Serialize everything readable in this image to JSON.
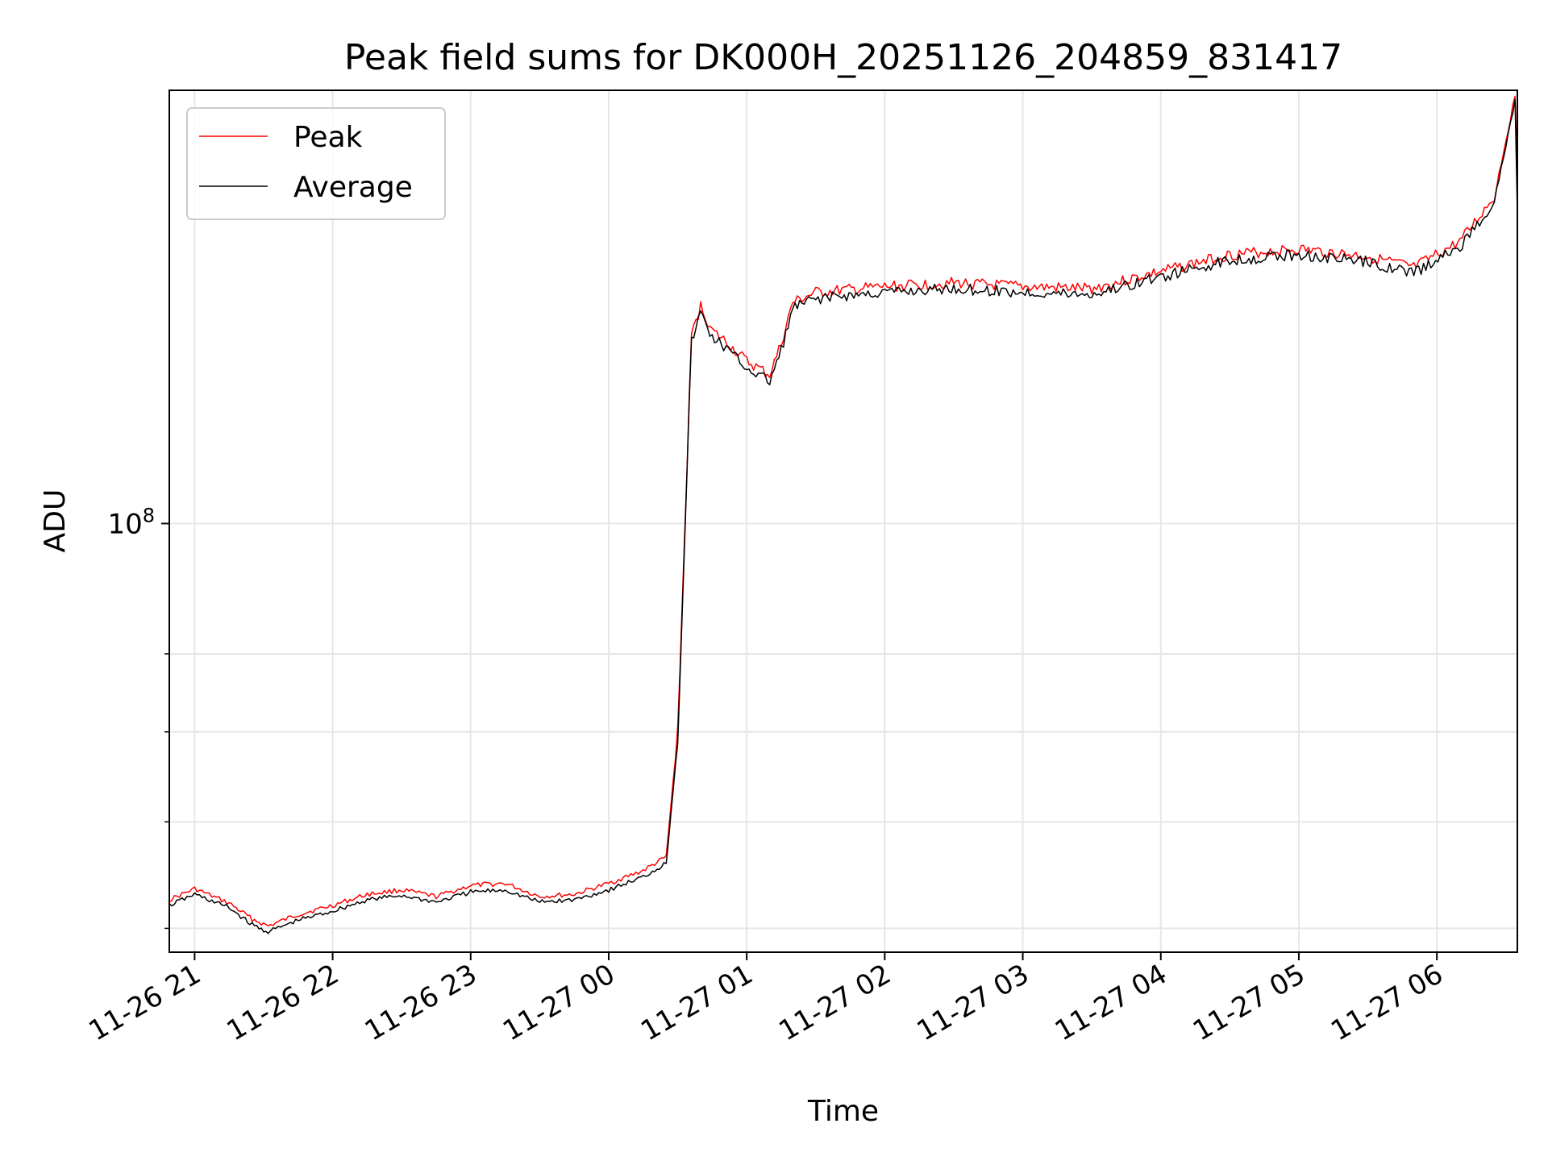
{
  "chart_data": {
    "type": "line",
    "title": "Peak field sums for DK000H_20251126_204859_831417",
    "xlabel": "Time",
    "ylabel": "ADU",
    "yscale": "log",
    "xlim": [
      "2025-11-26 20:49",
      "2025-11-27 06:35"
    ],
    "ylim": [
      48000000,
      210000000
    ],
    "x_ticks": [
      {
        "label": "11-26 21",
        "time": "2025-11-26 21:00"
      },
      {
        "label": "11-26 22",
        "time": "2025-11-26 22:00"
      },
      {
        "label": "11-26 23",
        "time": "2025-11-26 23:00"
      },
      {
        "label": "11-27 00",
        "time": "2025-11-27 00:00"
      },
      {
        "label": "11-27 01",
        "time": "2025-11-27 01:00"
      },
      {
        "label": "11-27 02",
        "time": "2025-11-27 02:00"
      },
      {
        "label": "11-27 03",
        "time": "2025-11-27 03:00"
      },
      {
        "label": "11-27 04",
        "time": "2025-11-27 04:00"
      },
      {
        "label": "11-27 05",
        "time": "2025-11-27 05:00"
      },
      {
        "label": "11-27 06",
        "time": "2025-11-27 06:00"
      }
    ],
    "y_major_ticks": [
      {
        "value": 100000000,
        "base": "10",
        "exp": "8"
      }
    ],
    "y_minor_ticks": [
      50000000,
      60000000,
      70000000,
      80000000
    ],
    "grid": true,
    "legend_position": "upper-left",
    "series": [
      {
        "name": "Peak",
        "color": "#ff0000",
        "x": [
          "2025-11-26 20:49",
          "2025-11-26 21:00",
          "2025-11-26 21:15",
          "2025-11-26 21:25",
          "2025-11-26 21:32",
          "2025-11-26 21:45",
          "2025-11-26 22:00",
          "2025-11-26 22:15",
          "2025-11-26 22:30",
          "2025-11-26 22:45",
          "2025-11-26 23:00",
          "2025-11-26 23:15",
          "2025-11-26 23:30",
          "2025-11-26 23:45",
          "2025-11-27 00:00",
          "2025-11-27 00:15",
          "2025-11-27 00:25",
          "2025-11-27 00:30",
          "2025-11-27 00:33",
          "2025-11-27 00:36",
          "2025-11-27 00:40",
          "2025-11-27 00:45",
          "2025-11-27 00:50",
          "2025-11-27 01:00",
          "2025-11-27 01:10",
          "2025-11-27 01:15",
          "2025-11-27 01:20",
          "2025-11-27 01:30",
          "2025-11-27 02:00",
          "2025-11-27 02:30",
          "2025-11-27 03:00",
          "2025-11-27 03:30",
          "2025-11-27 04:00",
          "2025-11-27 04:30",
          "2025-11-27 05:00",
          "2025-11-27 05:30",
          "2025-11-27 05:50",
          "2025-11-27 06:10",
          "2025-11-27 06:25",
          "2025-11-27 06:34",
          "2025-11-27 06:35"
        ],
        "y": [
          52500000,
          53500000,
          52200000,
          50800000,
          50200000,
          51200000,
          52000000,
          53000000,
          53400000,
          52800000,
          53800000,
          54000000,
          52800000,
          53000000,
          54000000,
          55200000,
          56500000,
          70000000,
          98000000,
          138000000,
          145000000,
          139000000,
          137000000,
          132000000,
          129000000,
          136000000,
          146000000,
          148500000,
          150000000,
          151000000,
          150000000,
          149500000,
          154000000,
          158500000,
          160000000,
          158000000,
          155000000,
          162000000,
          175000000,
          208000000,
          182000000
        ]
      },
      {
        "name": "Average",
        "color": "#000000",
        "x": [
          "2025-11-26 20:49",
          "2025-11-26 21:00",
          "2025-11-26 21:15",
          "2025-11-26 21:25",
          "2025-11-26 21:32",
          "2025-11-26 21:45",
          "2025-11-26 22:00",
          "2025-11-26 22:15",
          "2025-11-26 22:30",
          "2025-11-26 22:45",
          "2025-11-26 23:00",
          "2025-11-26 23:15",
          "2025-11-26 23:30",
          "2025-11-26 23:45",
          "2025-11-27 00:00",
          "2025-11-27 00:15",
          "2025-11-27 00:25",
          "2025-11-27 00:30",
          "2025-11-27 00:33",
          "2025-11-27 00:36",
          "2025-11-27 00:40",
          "2025-11-27 00:45",
          "2025-11-27 00:50",
          "2025-11-27 01:00",
          "2025-11-27 01:10",
          "2025-11-27 01:15",
          "2025-11-27 01:20",
          "2025-11-27 01:30",
          "2025-11-27 02:00",
          "2025-11-27 02:30",
          "2025-11-27 03:00",
          "2025-11-27 03:30",
          "2025-11-27 04:00",
          "2025-11-27 04:30",
          "2025-11-27 05:00",
          "2025-11-27 05:30",
          "2025-11-27 05:50",
          "2025-11-27 06:10",
          "2025-11-27 06:25",
          "2025-11-27 06:34",
          "2025-11-27 06:35"
        ],
        "y": [
          52000000,
          53000000,
          51800000,
          50300000,
          49700000,
          50700000,
          51500000,
          52500000,
          52900000,
          52300000,
          53200000,
          53400000,
          52300000,
          52500000,
          53400000,
          54600000,
          55900000,
          69000000,
          97000000,
          136500000,
          143500000,
          137500000,
          135500000,
          130500000,
          127500000,
          134500000,
          144500000,
          147000000,
          148500000,
          149500000,
          148500000,
          148000000,
          152500000,
          157000000,
          158500000,
          156500000,
          153500000,
          160500000,
          173500000,
          206000000,
          170000000
        ]
      }
    ]
  }
}
